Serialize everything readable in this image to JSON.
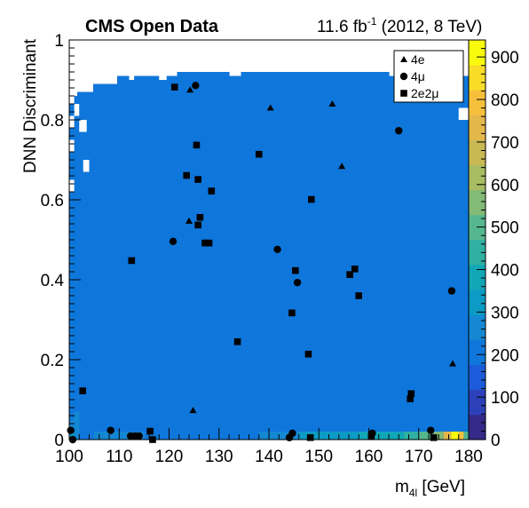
{
  "header": {
    "left": "CMS Open Data",
    "right_prefix": "11.6 fb",
    "right_sup": "-1",
    "right_suffix": " (2012, 8 TeV)"
  },
  "chart_data": {
    "type": "heatmap",
    "title": "",
    "xlabel_main": "m",
    "xlabel_sub": "4l",
    "xlabel_unit": " [GeV]",
    "ylabel": "DNN Discriminant",
    "xlim": [
      100,
      180
    ],
    "ylim": [
      0,
      1
    ],
    "x_ticks": [
      "100",
      "110",
      "120",
      "130",
      "140",
      "150",
      "160",
      "170",
      "180"
    ],
    "y_ticks": [
      "0",
      "0.2",
      "0.4",
      "0.6",
      "0.8",
      "1"
    ],
    "colorbar": {
      "range": [
        0,
        940
      ],
      "ticks": [
        "0",
        "100",
        "200",
        "300",
        "400",
        "500",
        "600",
        "700",
        "800",
        "900"
      ],
      "palette": [
        "#352A87",
        "#2C41B9",
        "#1C5BDA",
        "#0F77DB",
        "#1488D2",
        "#0C9BC4",
        "#11A7B6",
        "#2FB0A3",
        "#54B78E",
        "#82BA76",
        "#A8BC62",
        "#C8B954",
        "#E4B74A",
        "#F7C03C",
        "#F8DC26",
        "#F9FB0E"
      ]
    },
    "background_level": 3,
    "empty_top_cells": [
      [
        100,
        100.8
      ],
      [
        100.8,
        101.6
      ],
      [
        101.6,
        102.4
      ],
      [
        102.4,
        103.2
      ],
      [
        103.2,
        104.0
      ],
      [
        104.0,
        104.8
      ],
      [
        104.8,
        105.6
      ],
      [
        105.6,
        106.4
      ],
      [
        106.4,
        107.2
      ],
      [
        107.2,
        108.0
      ],
      [
        108.0,
        108.8
      ],
      [
        108.8,
        109.6
      ],
      [
        109.6,
        110.4
      ],
      [
        110.4,
        111.2
      ],
      [
        111.2,
        112.0
      ],
      [
        112.0,
        112.8
      ],
      [
        112.8,
        113.6
      ],
      [
        113.6,
        114.4
      ],
      [
        114.4,
        115.2
      ],
      [
        115.2,
        116.0
      ],
      [
        116.0,
        116.8
      ],
      [
        116.8,
        117.6
      ],
      [
        117.6,
        118.4
      ],
      [
        118.4,
        119.2
      ],
      [
        119.2,
        120.0
      ],
      [
        120.0,
        120.8
      ],
      [
        120.8,
        121.6
      ],
      [
        121.6,
        122.4
      ],
      [
        122.4,
        123.2
      ],
      [
        123.2,
        124.0
      ],
      [
        124.0,
        124.8
      ],
      [
        124.8,
        125.6
      ],
      [
        125.6,
        126.4
      ],
      [
        126.4,
        127.2
      ],
      [
        127.2,
        128.0
      ],
      [
        128.0,
        128.8
      ],
      [
        128.8,
        129.6
      ],
      [
        129.6,
        130.4
      ],
      [
        130.4,
        131.2
      ],
      [
        131.2,
        132.0
      ],
      [
        132.0,
        132.8
      ],
      [
        132.8,
        133.6
      ],
      [
        133.6,
        134.4
      ],
      [
        134.4,
        135.2
      ],
      [
        135.2,
        136.0
      ],
      [
        136.0,
        136.8
      ],
      [
        136.8,
        137.6
      ],
      [
        137.6,
        138.4
      ],
      [
        138.4,
        139.2
      ],
      [
        139.2,
        140.0
      ],
      [
        140.0,
        140.8
      ],
      [
        140.8,
        141.6
      ],
      [
        141.6,
        142.4
      ],
      [
        142.4,
        143.2
      ],
      [
        143.2,
        144.0
      ],
      [
        144.0,
        144.8
      ],
      [
        144.8,
        145.6
      ],
      [
        145.6,
        146.4
      ],
      [
        146.4,
        147.2
      ],
      [
        147.2,
        148.0
      ],
      [
        148.0,
        148.8
      ],
      [
        148.8,
        149.6
      ],
      [
        149.6,
        150.4
      ],
      [
        150.4,
        151.2
      ],
      [
        151.2,
        152.0
      ],
      [
        152.0,
        152.8
      ],
      [
        152.8,
        153.6
      ],
      [
        153.6,
        154.4
      ],
      [
        154.4,
        155.2
      ],
      [
        155.2,
        156.0
      ],
      [
        156.0,
        156.8
      ],
      [
        156.8,
        157.6
      ],
      [
        157.6,
        158.4
      ],
      [
        158.4,
        159.2
      ],
      [
        159.2,
        160.0
      ],
      [
        160.0,
        160.8
      ],
      [
        160.8,
        161.6
      ],
      [
        161.6,
        162.4
      ],
      [
        162.4,
        163.2
      ],
      [
        163.2,
        164.0
      ],
      [
        164.0,
        164.8
      ],
      [
        164.8,
        165.6
      ],
      [
        165.6,
        166.4
      ],
      [
        166.4,
        167.2
      ],
      [
        167.2,
        168.0
      ],
      [
        168.0,
        168.8
      ],
      [
        168.8,
        169.6
      ],
      [
        169.6,
        170.4
      ],
      [
        170.4,
        171.2
      ],
      [
        171.2,
        172.0
      ],
      [
        172.0,
        172.8
      ],
      [
        172.8,
        173.6
      ],
      [
        173.6,
        174.4
      ],
      [
        174.4,
        175.2
      ],
      [
        175.2,
        176.0
      ],
      [
        176.0,
        176.8
      ],
      [
        176.8,
        177.6
      ],
      [
        177.6,
        178.4
      ],
      [
        178.4,
        179.2
      ],
      [
        179.2,
        180.0
      ]
    ],
    "top_edge": [
      0.86,
      0.86,
      0.87,
      0.87,
      0.87,
      0.87,
      0.89,
      0.89,
      0.89,
      0.89,
      0.89,
      0.89,
      0.91,
      0.91,
      0.91,
      0.91,
      0.91,
      0.91,
      0.91,
      0.91,
      0.91,
      0.91,
      0.91,
      0.91,
      0.91,
      0.91,
      0.91,
      0.92,
      0.92,
      0.92,
      0.92,
      0.92,
      0.92,
      0.92,
      0.92,
      0.92,
      0.92,
      0.92,
      0.92,
      0.92,
      0.91,
      0.91,
      0.91,
      0.92,
      0.92,
      0.92,
      0.92,
      0.92,
      0.92,
      0.92,
      0.92,
      0.92,
      0.92,
      0.92,
      0.92,
      0.92,
      0.92,
      0.92,
      0.92,
      0.92,
      0.92,
      0.92,
      0.92,
      0.92,
      0.92,
      0.92,
      0.92,
      0.92,
      0.92,
      0.92,
      0.92,
      0.92,
      0.92,
      0.92,
      0.92,
      0.92,
      0.92,
      0.92,
      0.92,
      0.92,
      0.91,
      0.91,
      0.91,
      0.91,
      0.91,
      0.91,
      0.91,
      0.91,
      0.91,
      0.91,
      0.91,
      0.91,
      0.91,
      0.91,
      0.91,
      0.91,
      0.91,
      0.91,
      0.91,
      0.91
    ],
    "holes": [
      {
        "x": [
          100,
          101
        ],
        "y": [
          0.84,
          0.87
        ]
      },
      {
        "x": [
          101,
          102
        ],
        "y": [
          0.81,
          0.84
        ]
      },
      {
        "x": [
          100,
          101
        ],
        "y": [
          0.78,
          0.81
        ]
      },
      {
        "x": [
          102,
          103.5
        ],
        "y": [
          0.77,
          0.8
        ]
      },
      {
        "x": [
          100,
          101
        ],
        "y": [
          0.72,
          0.75
        ]
      },
      {
        "x": [
          102.8,
          104
        ],
        "y": [
          0.67,
          0.7
        ]
      },
      {
        "x": [
          100,
          101
        ],
        "y": [
          0.62,
          0.65
        ]
      },
      {
        "x": [
          178,
          180
        ],
        "y": [
          0.8,
          0.83
        ]
      },
      {
        "x": [
          112,
          113
        ],
        "y": [
          0.9,
          0.92
        ]
      },
      {
        "x": [
          118,
          119.5
        ],
        "y": [
          0.9,
          0.92
        ]
      }
    ],
    "hot_cells": [
      {
        "x": [
          100,
          101
        ],
        "y": [
          0,
          0.05
        ],
        "level": 5
      },
      {
        "x": [
          101,
          102
        ],
        "y": [
          0,
          0.05
        ],
        "level": 4
      },
      {
        "x": [
          100,
          102
        ],
        "y": [
          0.02,
          0.05
        ],
        "level": 4
      },
      {
        "x": [
          101,
          102
        ],
        "y": [
          0.05,
          0.07
        ],
        "level": 4
      },
      {
        "x": [
          105,
          110
        ],
        "y": [
          0,
          0.02
        ],
        "level": 4
      },
      {
        "x": [
          110,
          115
        ],
        "y": [
          0,
          0.02
        ],
        "level": 4
      },
      {
        "x": [
          138,
          146
        ],
        "y": [
          0,
          0.02
        ],
        "level": 4
      },
      {
        "x": [
          146,
          152
        ],
        "y": [
          0,
          0.02
        ],
        "level": 5
      },
      {
        "x": [
          152,
          158
        ],
        "y": [
          0,
          0.02
        ],
        "level": 5
      },
      {
        "x": [
          158,
          163
        ],
        "y": [
          0,
          0.02
        ],
        "level": 6
      },
      {
        "x": [
          163,
          167
        ],
        "y": [
          0,
          0.02
        ],
        "level": 6
      },
      {
        "x": [
          167,
          170
        ],
        "y": [
          0,
          0.02
        ],
        "level": 7
      },
      {
        "x": [
          170,
          173
        ],
        "y": [
          0,
          0.02
        ],
        "level": 8
      },
      {
        "x": [
          173,
          175
        ],
        "y": [
          0,
          0.02
        ],
        "level": 9
      },
      {
        "x": [
          175,
          176.5
        ],
        "y": [
          0,
          0.02
        ],
        "level": 12
      },
      {
        "x": [
          176.5,
          178
        ],
        "y": [
          0,
          0.02
        ],
        "level": 15
      },
      {
        "x": [
          178,
          179
        ],
        "y": [
          0,
          0.02
        ],
        "level": 13
      },
      {
        "x": [
          179,
          180
        ],
        "y": [
          0,
          0.02
        ],
        "level": 8
      }
    ],
    "legend": {
      "position": "top-right",
      "entries": [
        {
          "marker": "triangle",
          "label": "4e"
        },
        {
          "marker": "circle",
          "label": "4μ"
        },
        {
          "marker": "square",
          "label": "2e2μ"
        }
      ]
    },
    "series": [
      {
        "name": "4e",
        "marker": "triangle",
        "points": [
          [
            124.2,
            0.875
          ],
          [
            140.3,
            0.83
          ],
          [
            152.7,
            0.84
          ],
          [
            154.6,
            0.684
          ],
          [
            124.0,
            0.547
          ],
          [
            124.8,
            0.073
          ],
          [
            176.8,
            0.19
          ]
        ]
      },
      {
        "name": "4μ",
        "marker": "circle",
        "points": [
          [
            125.3,
            0.886
          ],
          [
            166.0,
            0.773
          ],
          [
            120.8,
            0.496
          ],
          [
            141.7,
            0.476
          ],
          [
            145.7,
            0.393
          ],
          [
            176.6,
            0.372
          ],
          [
            100.3,
            0.023
          ],
          [
            100.7,
            0.0
          ],
          [
            108.3,
            0.023
          ],
          [
            112.3,
            0.009
          ],
          [
            113.2,
            0.009
          ],
          [
            144.1,
            0.005
          ],
          [
            144.7,
            0.016
          ],
          [
            160.7,
            0.016
          ],
          [
            172.4,
            0.023
          ],
          [
            114.0,
            0.009
          ]
        ]
      },
      {
        "name": "2e2μ",
        "marker": "square",
        "points": [
          [
            121.1,
            0.882
          ],
          [
            125.5,
            0.737
          ],
          [
            138.0,
            0.714
          ],
          [
            123.5,
            0.661
          ],
          [
            125.8,
            0.651
          ],
          [
            128.5,
            0.622
          ],
          [
            148.5,
            0.601
          ],
          [
            126.2,
            0.556
          ],
          [
            125.8,
            0.537
          ],
          [
            127.2,
            0.492
          ],
          [
            128.0,
            0.492
          ],
          [
            112.5,
            0.448
          ],
          [
            145.3,
            0.423
          ],
          [
            157.2,
            0.427
          ],
          [
            156.2,
            0.413
          ],
          [
            158.0,
            0.36
          ],
          [
            144.6,
            0.317
          ],
          [
            133.7,
            0.245
          ],
          [
            147.9,
            0.214
          ],
          [
            102.7,
            0.122
          ],
          [
            168.5,
            0.115
          ],
          [
            168.3,
            0.102
          ],
          [
            116.2,
            0.021
          ],
          [
            116.7,
            0.0
          ],
          [
            148.3,
            0.005
          ],
          [
            160.5,
            0.009
          ],
          [
            173.0,
            0.005
          ]
        ]
      }
    ]
  }
}
